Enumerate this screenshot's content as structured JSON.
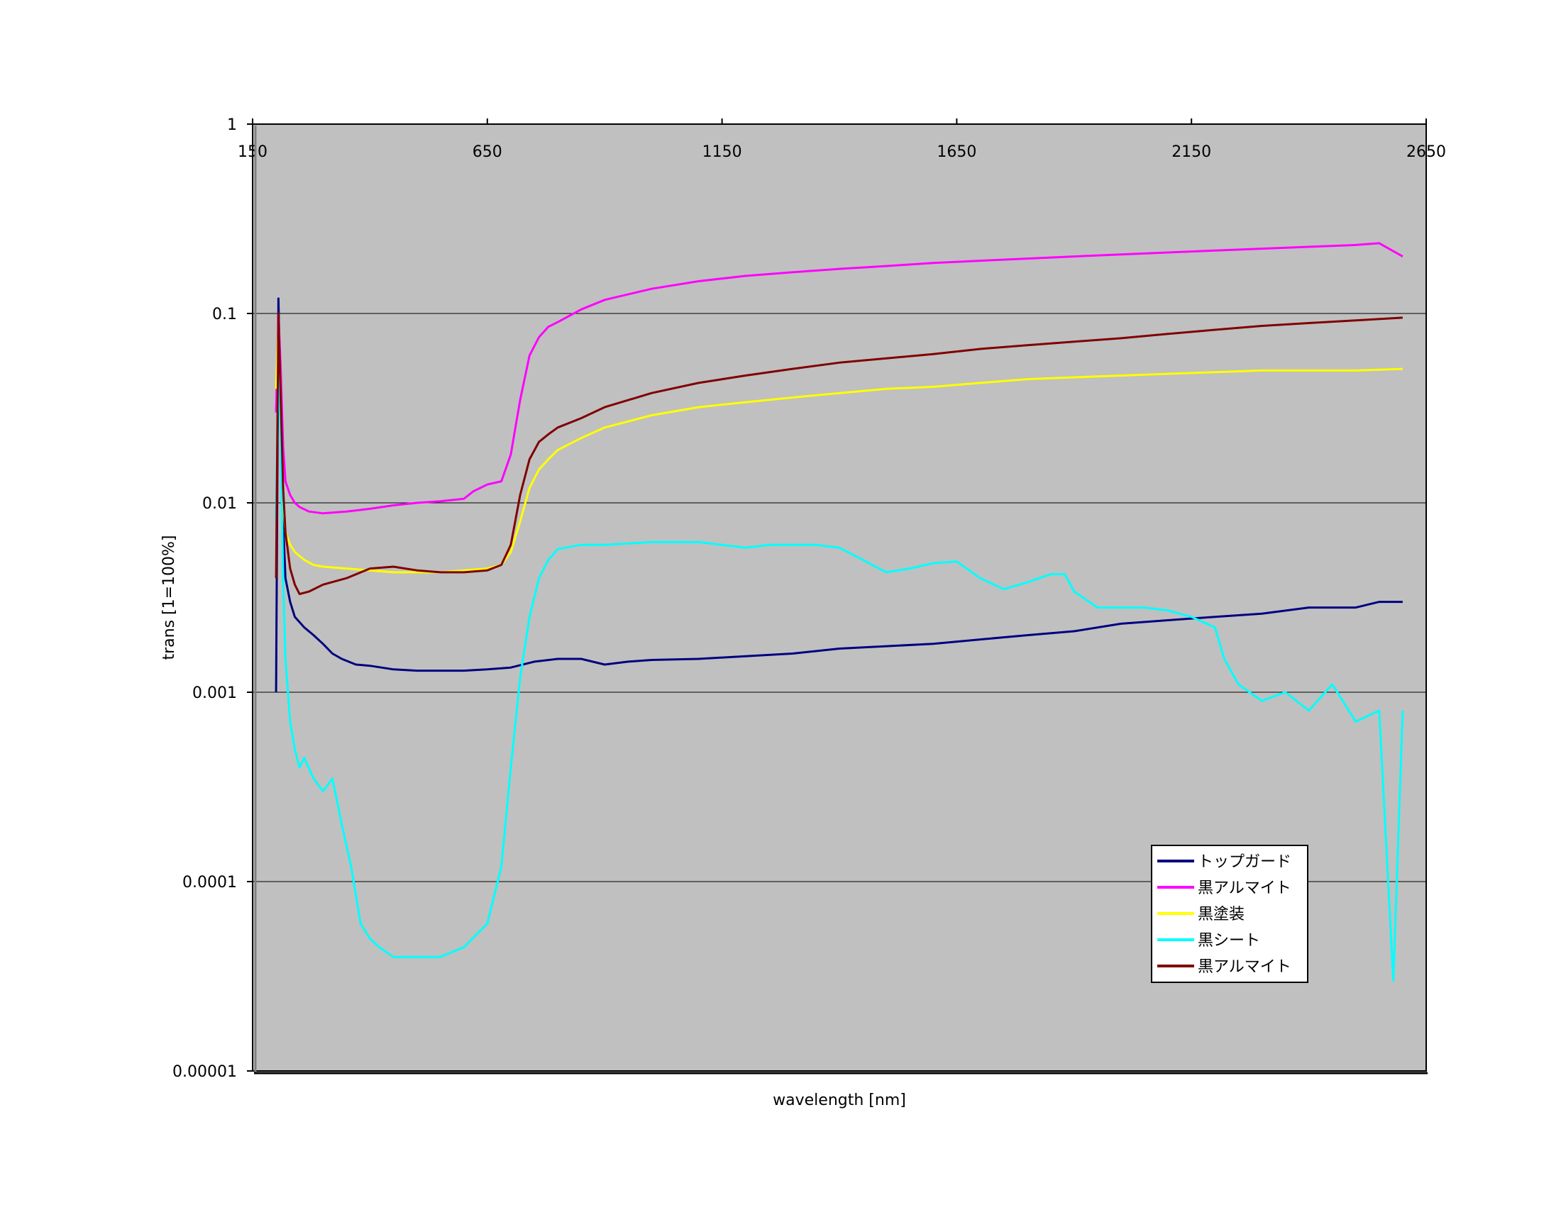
{
  "chart_data": {
    "type": "line",
    "title": "",
    "xlabel": "wavelength [nm]",
    "ylabel": "trans [1=100%]",
    "xlim": [
      150,
      2650
    ],
    "ylim": [
      1e-05,
      1
    ],
    "yscale": "log",
    "x_ticks": [
      "150",
      "650",
      "1150",
      "1650",
      "2150",
      "2650"
    ],
    "y_ticks": [
      "1",
      "0.1",
      "0.01",
      "0.001",
      "0.0001",
      "0.00001"
    ],
    "x_tick_values": [
      150,
      650,
      1150,
      1650,
      2150,
      2650
    ],
    "y_tick_values": [
      1,
      0.1,
      0.01,
      0.001,
      0.0001,
      1e-05
    ],
    "grid": "horizontal",
    "legend_position": "bottom-right",
    "plot_background": "#c0c0c0",
    "series": [
      {
        "name": "トップガード",
        "color": "#000080",
        "points": [
          [
            200,
            0.001
          ],
          [
            205,
            0.12
          ],
          [
            210,
            0.03
          ],
          [
            215,
            0.008
          ],
          [
            220,
            0.004
          ],
          [
            230,
            0.003
          ],
          [
            240,
            0.0025
          ],
          [
            260,
            0.0022
          ],
          [
            280,
            0.002
          ],
          [
            300,
            0.0018
          ],
          [
            320,
            0.0016
          ],
          [
            340,
            0.0015
          ],
          [
            370,
            0.0014
          ],
          [
            400,
            0.00138
          ],
          [
            450,
            0.00132
          ],
          [
            500,
            0.0013
          ],
          [
            550,
            0.0013
          ],
          [
            600,
            0.0013
          ],
          [
            650,
            0.00132
          ],
          [
            700,
            0.00135
          ],
          [
            750,
            0.00145
          ],
          [
            800,
            0.0015
          ],
          [
            850,
            0.0015
          ],
          [
            900,
            0.0014
          ],
          [
            950,
            0.00145
          ],
          [
            1000,
            0.00148
          ],
          [
            1100,
            0.0015
          ],
          [
            1200,
            0.00155
          ],
          [
            1300,
            0.0016
          ],
          [
            1400,
            0.0017
          ],
          [
            1500,
            0.00175
          ],
          [
            1600,
            0.0018
          ],
          [
            1700,
            0.0019
          ],
          [
            1800,
            0.002
          ],
          [
            1900,
            0.0021
          ],
          [
            2000,
            0.0023
          ],
          [
            2100,
            0.0024
          ],
          [
            2200,
            0.0025
          ],
          [
            2300,
            0.0026
          ],
          [
            2400,
            0.0028
          ],
          [
            2500,
            0.0028
          ],
          [
            2550,
            0.003
          ],
          [
            2600,
            0.003
          ]
        ]
      },
      {
        "name": "黒アルマイト",
        "color": "#ff00ff",
        "points": [
          [
            200,
            0.03
          ],
          [
            205,
            0.1
          ],
          [
            210,
            0.05
          ],
          [
            215,
            0.02
          ],
          [
            220,
            0.013
          ],
          [
            230,
            0.011
          ],
          [
            240,
            0.01
          ],
          [
            250,
            0.0095
          ],
          [
            270,
            0.009
          ],
          [
            300,
            0.0088
          ],
          [
            350,
            0.009
          ],
          [
            400,
            0.0093
          ],
          [
            450,
            0.0097
          ],
          [
            500,
            0.01
          ],
          [
            550,
            0.0102
          ],
          [
            600,
            0.0105
          ],
          [
            620,
            0.0115
          ],
          [
            650,
            0.0125
          ],
          [
            680,
            0.013
          ],
          [
            700,
            0.018
          ],
          [
            720,
            0.035
          ],
          [
            740,
            0.06
          ],
          [
            760,
            0.075
          ],
          [
            780,
            0.085
          ],
          [
            800,
            0.09
          ],
          [
            850,
            0.105
          ],
          [
            900,
            0.118
          ],
          [
            1000,
            0.135
          ],
          [
            1100,
            0.148
          ],
          [
            1200,
            0.158
          ],
          [
            1300,
            0.165
          ],
          [
            1400,
            0.172
          ],
          [
            1500,
            0.178
          ],
          [
            1600,
            0.185
          ],
          [
            1700,
            0.19
          ],
          [
            1800,
            0.195
          ],
          [
            1900,
            0.2
          ],
          [
            2000,
            0.205
          ],
          [
            2100,
            0.21
          ],
          [
            2200,
            0.215
          ],
          [
            2300,
            0.22
          ],
          [
            2400,
            0.225
          ],
          [
            2500,
            0.23
          ],
          [
            2550,
            0.235
          ],
          [
            2600,
            0.2
          ]
        ]
      },
      {
        "name": "黒塗装",
        "color": "#ffff00",
        "points": [
          [
            200,
            0.04
          ],
          [
            205,
            0.085
          ],
          [
            210,
            0.03
          ],
          [
            215,
            0.01
          ],
          [
            220,
            0.007
          ],
          [
            230,
            0.006
          ],
          [
            240,
            0.0055
          ],
          [
            260,
            0.005
          ],
          [
            280,
            0.0047
          ],
          [
            300,
            0.0046
          ],
          [
            350,
            0.0045
          ],
          [
            400,
            0.0044
          ],
          [
            450,
            0.0043
          ],
          [
            500,
            0.0043
          ],
          [
            550,
            0.0043
          ],
          [
            600,
            0.0044
          ],
          [
            650,
            0.0045
          ],
          [
            680,
            0.0047
          ],
          [
            700,
            0.0055
          ],
          [
            720,
            0.008
          ],
          [
            740,
            0.012
          ],
          [
            760,
            0.015
          ],
          [
            780,
            0.017
          ],
          [
            800,
            0.019
          ],
          [
            850,
            0.022
          ],
          [
            900,
            0.025
          ],
          [
            1000,
            0.029
          ],
          [
            1100,
            0.032
          ],
          [
            1200,
            0.034
          ],
          [
            1300,
            0.036
          ],
          [
            1400,
            0.038
          ],
          [
            1500,
            0.04
          ],
          [
            1600,
            0.041
          ],
          [
            1700,
            0.043
          ],
          [
            1800,
            0.045
          ],
          [
            1900,
            0.046
          ],
          [
            2000,
            0.047
          ],
          [
            2100,
            0.048
          ],
          [
            2200,
            0.049
          ],
          [
            2300,
            0.05
          ],
          [
            2400,
            0.05
          ],
          [
            2500,
            0.05
          ],
          [
            2600,
            0.051
          ]
        ]
      },
      {
        "name": "黒シート",
        "color": "#00ffff",
        "points": [
          [
            200,
            0.008
          ],
          [
            205,
            0.06
          ],
          [
            210,
            0.02
          ],
          [
            215,
            0.004
          ],
          [
            220,
            0.0015
          ],
          [
            230,
            0.0007
          ],
          [
            240,
            0.0005
          ],
          [
            250,
            0.0004
          ],
          [
            260,
            0.00045
          ],
          [
            280,
            0.00035
          ],
          [
            300,
            0.0003
          ],
          [
            320,
            0.00035
          ],
          [
            340,
            0.0002
          ],
          [
            360,
            0.00012
          ],
          [
            380,
            6e-05
          ],
          [
            400,
            5e-05
          ],
          [
            420,
            4.5e-05
          ],
          [
            450,
            4e-05
          ],
          [
            500,
            4e-05
          ],
          [
            550,
            4e-05
          ],
          [
            600,
            4.5e-05
          ],
          [
            650,
            6e-05
          ],
          [
            680,
            0.00012
          ],
          [
            700,
            0.0004
          ],
          [
            720,
            0.0012
          ],
          [
            740,
            0.0025
          ],
          [
            760,
            0.004
          ],
          [
            780,
            0.005
          ],
          [
            800,
            0.0057
          ],
          [
            850,
            0.006
          ],
          [
            900,
            0.006
          ],
          [
            1000,
            0.0062
          ],
          [
            1100,
            0.0062
          ],
          [
            1150,
            0.006
          ],
          [
            1200,
            0.0058
          ],
          [
            1250,
            0.006
          ],
          [
            1350,
            0.006
          ],
          [
            1400,
            0.0058
          ],
          [
            1450,
            0.005
          ],
          [
            1500,
            0.0043
          ],
          [
            1550,
            0.0045
          ],
          [
            1600,
            0.0048
          ],
          [
            1650,
            0.0049
          ],
          [
            1700,
            0.004
          ],
          [
            1750,
            0.0035
          ],
          [
            1800,
            0.0038
          ],
          [
            1850,
            0.0042
          ],
          [
            1880,
            0.0042
          ],
          [
            1900,
            0.0034
          ],
          [
            1950,
            0.0028
          ],
          [
            2000,
            0.0028
          ],
          [
            2050,
            0.0028
          ],
          [
            2100,
            0.0027
          ],
          [
            2150,
            0.0025
          ],
          [
            2200,
            0.0022
          ],
          [
            2220,
            0.0015
          ],
          [
            2250,
            0.0011
          ],
          [
            2300,
            0.0009
          ],
          [
            2350,
            0.001
          ],
          [
            2400,
            0.0008
          ],
          [
            2450,
            0.0011
          ],
          [
            2500,
            0.0007
          ],
          [
            2550,
            0.0008
          ],
          [
            2580,
            3e-05
          ],
          [
            2600,
            0.0008
          ]
        ]
      },
      {
        "name": "黒アルマイト",
        "color": "#800000",
        "points": [
          [
            200,
            0.004
          ],
          [
            205,
            0.1
          ],
          [
            210,
            0.035
          ],
          [
            215,
            0.012
          ],
          [
            220,
            0.007
          ],
          [
            230,
            0.0045
          ],
          [
            240,
            0.0037
          ],
          [
            250,
            0.0033
          ],
          [
            270,
            0.0034
          ],
          [
            300,
            0.0037
          ],
          [
            350,
            0.004
          ],
          [
            400,
            0.0045
          ],
          [
            450,
            0.0046
          ],
          [
            500,
            0.0044
          ],
          [
            550,
            0.0043
          ],
          [
            600,
            0.0043
          ],
          [
            650,
            0.0044
          ],
          [
            680,
            0.0047
          ],
          [
            700,
            0.006
          ],
          [
            720,
            0.011
          ],
          [
            740,
            0.017
          ],
          [
            760,
            0.021
          ],
          [
            780,
            0.023
          ],
          [
            800,
            0.025
          ],
          [
            850,
            0.028
          ],
          [
            900,
            0.032
          ],
          [
            1000,
            0.038
          ],
          [
            1100,
            0.043
          ],
          [
            1200,
            0.047
          ],
          [
            1300,
            0.051
          ],
          [
            1400,
            0.055
          ],
          [
            1500,
            0.058
          ],
          [
            1600,
            0.061
          ],
          [
            1700,
            0.065
          ],
          [
            1800,
            0.068
          ],
          [
            1900,
            0.071
          ],
          [
            2000,
            0.074
          ],
          [
            2100,
            0.078
          ],
          [
            2200,
            0.082
          ],
          [
            2300,
            0.086
          ],
          [
            2400,
            0.089
          ],
          [
            2500,
            0.092
          ],
          [
            2600,
            0.095
          ]
        ]
      }
    ]
  }
}
